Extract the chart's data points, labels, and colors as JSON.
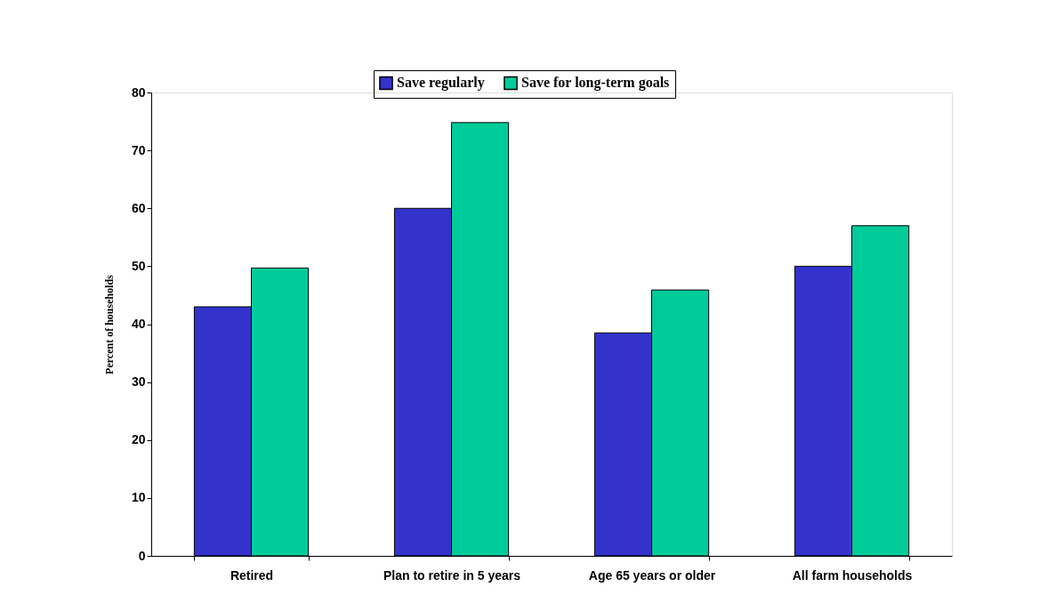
{
  "chart_data": {
    "type": "bar",
    "ylabel": "Percent of households",
    "categories": [
      "Retired",
      "Plan to retire in 5 years",
      "Age 65 years or older",
      "All farm households"
    ],
    "series": [
      {
        "name": "Save regularly",
        "color": "#3333cc",
        "values": [
          43,
          60,
          38.5,
          50
        ]
      },
      {
        "name": "Save for long-term goals",
        "color": "#00cc99",
        "values": [
          49.7,
          74.8,
          45.9,
          57
        ]
      }
    ],
    "ylim": [
      0,
      80
    ],
    "yticks": [
      0,
      10,
      20,
      30,
      40,
      50,
      60,
      70,
      80
    ],
    "grid": false,
    "legend": "top"
  }
}
